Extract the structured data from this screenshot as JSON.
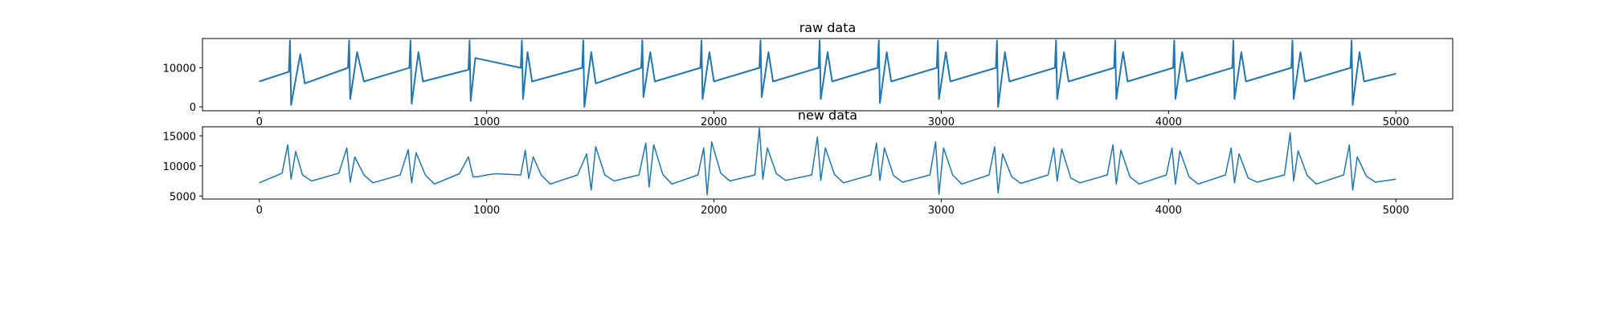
{
  "chart_data": [
    {
      "type": "line",
      "title": "raw data",
      "xlabel": "",
      "ylabel": "",
      "xlim": [
        -250,
        5250
      ],
      "ylim": [
        -1000,
        17500
      ],
      "xticks": [
        0,
        1000,
        2000,
        3000,
        4000,
        5000
      ],
      "xtick_labels": [
        "0",
        "1000",
        "2000",
        "3000",
        "4000",
        "5000"
      ],
      "yticks": [
        0,
        10000
      ],
      "ytick_labels": [
        "0",
        "10000"
      ],
      "grid": false,
      "legend": "none",
      "color": "#1f77b4",
      "series": [
        {
          "x": [
            0,
            130,
            135,
            140,
            180,
            200,
            390,
            395,
            400,
            430,
            460,
            660,
            665,
            670,
            700,
            720,
            920,
            925,
            930,
            950,
            1150,
            1155,
            1160,
            1180,
            1200,
            1420,
            1425,
            1430,
            1460,
            1480,
            1680,
            1685,
            1690,
            1720,
            1740,
            1940,
            1945,
            1950,
            1980,
            2000,
            2200,
            2205,
            2210,
            2240,
            2260,
            2460,
            2465,
            2470,
            2500,
            2520,
            2720,
            2725,
            2730,
            2760,
            2780,
            2980,
            2985,
            2990,
            3020,
            3040,
            3240,
            3245,
            3250,
            3280,
            3300,
            3500,
            3505,
            3510,
            3540,
            3560,
            3760,
            3765,
            3770,
            3800,
            3820,
            4020,
            4025,
            4030,
            4060,
            4080,
            4280,
            4285,
            4290,
            4320,
            4340,
            4540,
            4545,
            4550,
            4580,
            4600,
            4800,
            4805,
            4810,
            4840,
            4860,
            5000
          ],
          "y": [
            6500,
            9000,
            17000,
            500,
            13500,
            6000,
            10000,
            17000,
            2000,
            14000,
            6500,
            10000,
            17000,
            800,
            14000,
            6500,
            9500,
            17000,
            1500,
            12500,
            10000,
            17000,
            2000,
            14000,
            6500,
            10000,
            17000,
            0,
            14000,
            6000,
            10000,
            17000,
            2500,
            14000,
            6500,
            10000,
            17000,
            2000,
            14000,
            6500,
            10000,
            17000,
            2500,
            14000,
            6500,
            10000,
            17000,
            2000,
            14000,
            6500,
            10000,
            17000,
            1000,
            14000,
            6500,
            10000,
            17000,
            2000,
            14000,
            6500,
            10000,
            17000,
            0,
            14000,
            6500,
            10000,
            17000,
            2000,
            14000,
            6500,
            10000,
            17000,
            2000,
            14000,
            6500,
            10000,
            17000,
            2000,
            14000,
            6500,
            10000,
            17000,
            2000,
            14000,
            6500,
            10000,
            17000,
            2000,
            14000,
            6500,
            10000,
            17000,
            500,
            14000,
            6500,
            8500
          ]
        }
      ]
    },
    {
      "type": "line",
      "title": "new data",
      "xlabel": "",
      "ylabel": "",
      "xlim": [
        -250,
        5250
      ],
      "ylim": [
        4500,
        16500
      ],
      "xticks": [
        0,
        1000,
        2000,
        3000,
        4000,
        5000
      ],
      "xtick_labels": [
        "0",
        "1000",
        "2000",
        "3000",
        "4000",
        "5000"
      ],
      "yticks": [
        5000,
        10000,
        15000
      ],
      "ytick_labels": [
        "5000",
        "10000",
        "15000"
      ],
      "grid": false,
      "legend": "none",
      "color": "#1f77b4",
      "series": [
        {
          "x": [
            0,
            100,
            125,
            140,
            160,
            190,
            230,
            350,
            385,
            400,
            420,
            460,
            500,
            620,
            655,
            670,
            690,
            730,
            770,
            880,
            920,
            940,
            960,
            1000,
            1040,
            1150,
            1170,
            1185,
            1205,
            1240,
            1280,
            1400,
            1440,
            1460,
            1480,
            1520,
            1560,
            1670,
            1700,
            1715,
            1735,
            1775,
            1815,
            1930,
            1955,
            1970,
            1990,
            2030,
            2070,
            2180,
            2200,
            2215,
            2235,
            2275,
            2315,
            2430,
            2455,
            2470,
            2490,
            2530,
            2570,
            2690,
            2715,
            2730,
            2750,
            2790,
            2830,
            2950,
            2975,
            2990,
            3010,
            3050,
            3090,
            3210,
            3235,
            3250,
            3270,
            3310,
            3350,
            3470,
            3495,
            3510,
            3530,
            3570,
            3610,
            3730,
            3755,
            3770,
            3790,
            3830,
            3870,
            3990,
            4015,
            4030,
            4050,
            4090,
            4130,
            4250,
            4275,
            4290,
            4310,
            4350,
            4390,
            4510,
            4535,
            4550,
            4570,
            4610,
            4650,
            4770,
            4795,
            4810,
            4830,
            4870,
            4910,
            5000
          ],
          "y": [
            7200,
            8800,
            13500,
            7800,
            12400,
            8500,
            7500,
            8800,
            13000,
            7300,
            11500,
            8500,
            7200,
            8500,
            12700,
            7200,
            12200,
            8500,
            7000,
            8700,
            11500,
            8200,
            8200,
            8500,
            8700,
            8500,
            12600,
            7900,
            11500,
            8500,
            7000,
            8500,
            12000,
            6000,
            13200,
            8500,
            7500,
            8500,
            13800,
            6500,
            13500,
            8600,
            7000,
            8500,
            13000,
            5200,
            14000,
            8800,
            7500,
            8500,
            16300,
            7800,
            13000,
            8700,
            7600,
            8500,
            14800,
            7600,
            13000,
            8600,
            7200,
            8500,
            13800,
            7600,
            13000,
            8400,
            7300,
            8500,
            14000,
            5300,
            13000,
            8500,
            7000,
            8500,
            13200,
            5500,
            12000,
            8200,
            7100,
            8500,
            13000,
            7500,
            12800,
            8000,
            7200,
            8500,
            13500,
            7000,
            12600,
            8200,
            7000,
            8500,
            13000,
            7000,
            12500,
            8200,
            7000,
            8500,
            13000,
            7200,
            12000,
            8000,
            7300,
            8500,
            15500,
            7500,
            12500,
            8400,
            7000,
            8500,
            13500,
            6000,
            11500,
            8300,
            7300,
            7800
          ]
        }
      ]
    }
  ]
}
